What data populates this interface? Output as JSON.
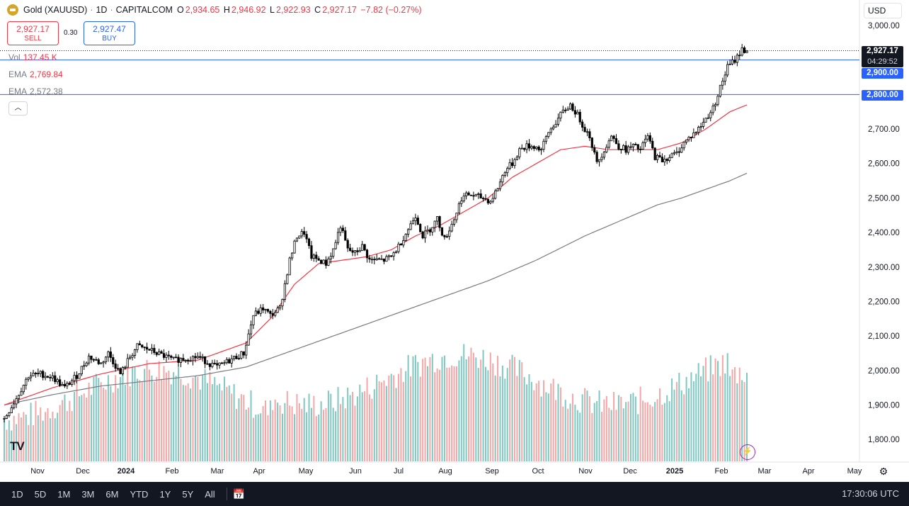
{
  "legend": {
    "symbol": "Gold (XAUUSD)",
    "interval": "1D",
    "source": "CAPITALCOM",
    "o_label": "O",
    "o": "2,934.65",
    "h_label": "H",
    "h": "2,946.92",
    "l_label": "L",
    "l": "2,922.93",
    "c_label": "C",
    "c": "2,927.17",
    "change": "−7.82 (−0.27%)"
  },
  "trade": {
    "sell_price": "2,927.17",
    "sell_label": "SELL",
    "spread": "0.30",
    "buy_price": "2,927.47",
    "buy_label": "BUY"
  },
  "indicators": {
    "vol_label": "Vol",
    "vol_value": "137.45 K",
    "ema1_label": "EMA",
    "ema1_value": "2,769.84",
    "ema2_label": "EMA",
    "ema2_value": "2,572.38"
  },
  "currency": "USD",
  "price_tags": {
    "last": "2,927.17",
    "countdown": "04:29:52",
    "line1": "2,900.00",
    "line2": "2,800.00"
  },
  "ranges": [
    "1D",
    "5D",
    "1M",
    "3M",
    "6M",
    "YTD",
    "1Y",
    "5Y",
    "All"
  ],
  "clock": "17:30:06 UTC",
  "icons": {
    "logo": "gold-coin-icon",
    "collapse": "chevron-up-icon",
    "calendar": "calendar-range-icon",
    "settings": "gear-icon",
    "alert": "lightning-icon",
    "brand": "tradingview-logo"
  },
  "colors": {
    "up": "#000000",
    "down": "#000000",
    "ema_fast": "#f23645",
    "ema_slow": "#787b86",
    "vol_up": "#7fc8c2",
    "vol_down": "#f5a6a6",
    "hline": "#2962ff"
  },
  "chart_data": {
    "type": "candlestick",
    "y_ticks": [
      "3,000.00",
      "2,900.00",
      "2,800.00",
      "2,700.00",
      "2,600.00",
      "2,500.00",
      "2,400.00",
      "2,300.00",
      "2,200.00",
      "2,100.00",
      "2,000.00",
      "1,900.00",
      "1,800.00"
    ],
    "x_ticks": [
      "Nov",
      "Dec",
      "2024",
      "Feb",
      "Mar",
      "Apr",
      "May",
      "Jun",
      "Jul",
      "Aug",
      "Sep",
      "Oct",
      "Nov",
      "Dec",
      "2025",
      "Feb",
      "Mar",
      "Apr",
      "May"
    ],
    "ylim": [
      1760,
      3025
    ],
    "horizontal_lines": [
      2900,
      2800
    ],
    "close_anchors": [
      [
        0,
        1860
      ],
      [
        5,
        1920
      ],
      [
        10,
        1985
      ],
      [
        15,
        1990
      ],
      [
        20,
        1980
      ],
      [
        25,
        1950
      ],
      [
        30,
        1985
      ],
      [
        35,
        2040
      ],
      [
        40,
        2020
      ],
      [
        43,
        2050
      ],
      [
        48,
        1990
      ],
      [
        52,
        2040
      ],
      [
        55,
        2070
      ],
      [
        60,
        2060
      ],
      [
        65,
        2045
      ],
      [
        70,
        2030
      ],
      [
        75,
        2035
      ],
      [
        80,
        2040
      ],
      [
        85,
        2020
      ],
      [
        88,
        2010
      ],
      [
        92,
        2025
      ],
      [
        96,
        2040
      ],
      [
        99,
        2050
      ],
      [
        103,
        2160
      ],
      [
        107,
        2180
      ],
      [
        110,
        2160
      ],
      [
        114,
        2180
      ],
      [
        118,
        2320
      ],
      [
        121,
        2390
      ],
      [
        124,
        2400
      ],
      [
        127,
        2330
      ],
      [
        130,
        2320
      ],
      [
        133,
        2310
      ],
      [
        136,
        2350
      ],
      [
        139,
        2420
      ],
      [
        142,
        2350
      ],
      [
        145,
        2340
      ],
      [
        148,
        2360
      ],
      [
        151,
        2320
      ],
      [
        154,
        2320
      ],
      [
        157,
        2320
      ],
      [
        160,
        2330
      ],
      [
        163,
        2360
      ],
      [
        167,
        2410
      ],
      [
        170,
        2450
      ],
      [
        173,
        2390
      ],
      [
        176,
        2410
      ],
      [
        179,
        2440
      ],
      [
        182,
        2380
      ],
      [
        186,
        2440
      ],
      [
        189,
        2500
      ],
      [
        192,
        2510
      ],
      [
        195,
        2505
      ],
      [
        198,
        2500
      ],
      [
        201,
        2490
      ],
      [
        204,
        2530
      ],
      [
        207,
        2580
      ],
      [
        210,
        2600
      ],
      [
        213,
        2640
      ],
      [
        216,
        2650
      ],
      [
        219,
        2650
      ],
      [
        222,
        2640
      ],
      [
        225,
        2690
      ],
      [
        228,
        2720
      ],
      [
        231,
        2750
      ],
      [
        234,
        2770
      ],
      [
        237,
        2740
      ],
      [
        240,
        2700
      ],
      [
        242,
        2680
      ],
      [
        245,
        2600
      ],
      [
        248,
        2640
      ],
      [
        251,
        2680
      ],
      [
        254,
        2650
      ],
      [
        257,
        2640
      ],
      [
        260,
        2650
      ],
      [
        263,
        2640
      ],
      [
        266,
        2680
      ],
      [
        269,
        2620
      ],
      [
        272,
        2610
      ],
      [
        275,
        2620
      ],
      [
        278,
        2630
      ],
      [
        281,
        2660
      ],
      [
        284,
        2680
      ],
      [
        287,
        2700
      ],
      [
        290,
        2730
      ],
      [
        293,
        2760
      ],
      [
        296,
        2820
      ],
      [
        299,
        2880
      ],
      [
        302,
        2900
      ],
      [
        305,
        2930
      ],
      [
        307,
        2927
      ]
    ],
    "ema_fast_anchors": [
      [
        0,
        1900
      ],
      [
        20,
        1950
      ],
      [
        40,
        1990
      ],
      [
        60,
        2020
      ],
      [
        80,
        2030
      ],
      [
        100,
        2080
      ],
      [
        110,
        2150
      ],
      [
        120,
        2250
      ],
      [
        130,
        2310
      ],
      [
        140,
        2320
      ],
      [
        150,
        2330
      ],
      [
        160,
        2350
      ],
      [
        170,
        2390
      ],
      [
        180,
        2420
      ],
      [
        190,
        2460
      ],
      [
        200,
        2500
      ],
      [
        210,
        2560
      ],
      [
        220,
        2600
      ],
      [
        230,
        2640
      ],
      [
        240,
        2650
      ],
      [
        250,
        2640
      ],
      [
        260,
        2640
      ],
      [
        270,
        2640
      ],
      [
        280,
        2660
      ],
      [
        290,
        2700
      ],
      [
        300,
        2750
      ],
      [
        307,
        2770
      ]
    ],
    "ema_slow_anchors": [
      [
        0,
        1900
      ],
      [
        20,
        1930
      ],
      [
        40,
        1955
      ],
      [
        60,
        1970
      ],
      [
        80,
        1985
      ],
      [
        100,
        2010
      ],
      [
        120,
        2060
      ],
      [
        140,
        2110
      ],
      [
        160,
        2160
      ],
      [
        180,
        2210
      ],
      [
        200,
        2260
      ],
      [
        220,
        2320
      ],
      [
        240,
        2390
      ],
      [
        250,
        2420
      ],
      [
        260,
        2450
      ],
      [
        270,
        2480
      ],
      [
        280,
        2500
      ],
      [
        290,
        2525
      ],
      [
        300,
        2550
      ],
      [
        307,
        2572
      ]
    ]
  }
}
